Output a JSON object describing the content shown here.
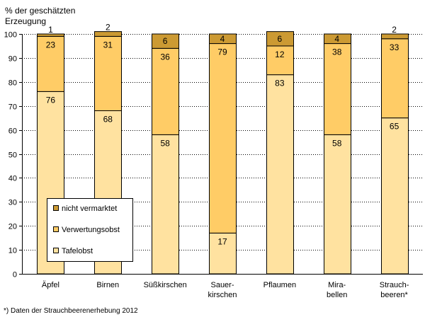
{
  "chart_data": {
    "type": "bar",
    "stacked": true,
    "title": "% der geschätzten Erzeugung",
    "ylabel_lines": [
      "% der geschätzten",
      "Erzeugung"
    ],
    "ylim": [
      0,
      100
    ],
    "yticks": [
      0,
      10,
      20,
      30,
      40,
      50,
      60,
      70,
      80,
      90,
      100
    ],
    "grid": true,
    "categories": [
      "Äpfel",
      "Birnen",
      "Süßkirschen",
      "Sauer-kirschen",
      "Pflaumen",
      "Mira-bellen",
      "Strauch-beeren*"
    ],
    "category_label_lines": [
      [
        "Äpfel"
      ],
      [
        "Birnen"
      ],
      [
        "Süßkirschen"
      ],
      [
        "Sauer-",
        "kirschen"
      ],
      [
        "Pflaumen"
      ],
      [
        "Mira-",
        "bellen"
      ],
      [
        "Strauch-",
        "beeren*"
      ]
    ],
    "series": [
      {
        "name": "Tafelobst",
        "color": "#ffe2a0",
        "values": [
          76,
          68,
          58,
          17,
          83,
          58,
          65
        ]
      },
      {
        "name": "Verwertungsobst",
        "color": "#ffcc66",
        "values": [
          23,
          31,
          36,
          79,
          12,
          38,
          33
        ]
      },
      {
        "name": "nicht vermarktet",
        "color": "#cc9a33",
        "values": [
          1,
          2,
          6,
          4,
          6,
          4,
          2
        ]
      }
    ],
    "legend": {
      "placement": "lower-left",
      "order": [
        "nicht vermarktet",
        "Verwertungsobst",
        "Tafelobst"
      ]
    },
    "footnote": "*) Daten der Strauchbeerenerhebung 2012"
  }
}
